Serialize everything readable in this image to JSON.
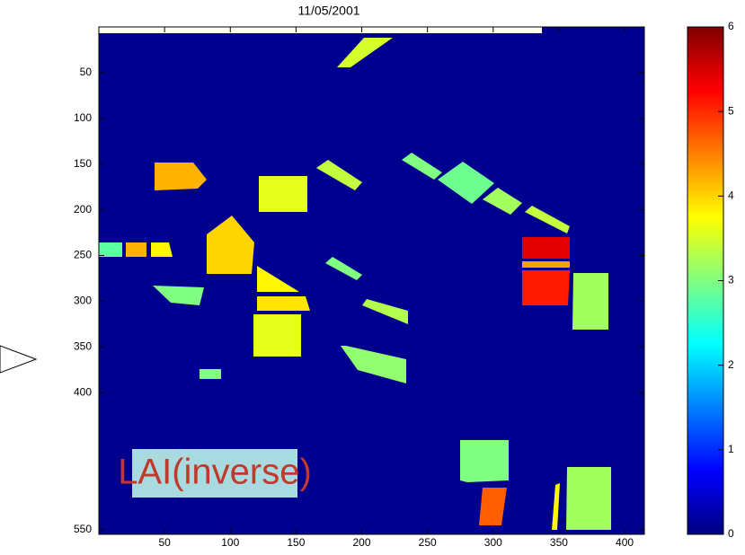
{
  "chart_data": {
    "type": "image",
    "title": "11/05/2001",
    "xlim": [
      0,
      415
    ],
    "ylim": [
      0,
      555
    ],
    "xticks": [
      50,
      100,
      150,
      200,
      250,
      300,
      350,
      400
    ],
    "yticks": [
      50,
      100,
      150,
      200,
      250,
      300,
      350,
      400,
      550
    ],
    "colorbar": {
      "lim": [
        0,
        6
      ],
      "ticks": [
        0,
        1,
        2,
        3,
        4,
        5,
        6
      ]
    },
    "field_values": [
      3.5,
      4.2,
      3.6,
      3.4,
      3.0,
      2.9,
      3.2,
      3.4,
      4.0,
      2.8,
      4.2,
      3.8,
      3.0,
      3.8,
      3.9,
      3.6,
      3.0,
      3.3,
      3.1,
      3.0,
      5.4,
      4.3,
      5.1,
      3.2,
      3.0,
      4.7,
      3.2,
      3.8
    ],
    "annotation": "LAI(inverse)"
  }
}
